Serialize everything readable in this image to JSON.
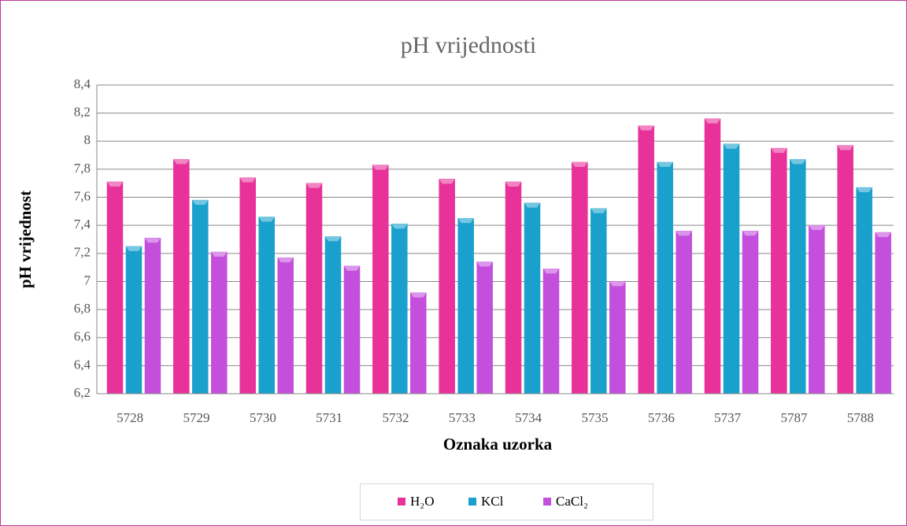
{
  "chart_data": {
    "type": "bar",
    "title": "pH vrijednosti",
    "x_label": "Oznaka uzorka",
    "y_label": "pH vrijednost",
    "categories": [
      "5728",
      "5729",
      "5730",
      "5731",
      "5732",
      "5733",
      "5734",
      "5735",
      "5736",
      "5737",
      "5787",
      "5788"
    ],
    "series": [
      {
        "name": "H₂O",
        "color": "#e8329a",
        "values": [
          7.71,
          7.87,
          7.74,
          7.7,
          7.83,
          7.73,
          7.71,
          7.85,
          8.11,
          8.16,
          7.95,
          7.97
        ]
      },
      {
        "name": "KCl",
        "color": "#1aa0cc",
        "values": [
          7.25,
          7.58,
          7.46,
          7.32,
          7.41,
          7.45,
          7.56,
          7.52,
          7.85,
          7.98,
          7.87,
          7.67
        ]
      },
      {
        "name": "CaCl₂",
        "color": "#c44fdc",
        "values": [
          7.31,
          7.21,
          7.17,
          7.11,
          6.92,
          7.14,
          7.09,
          7.0,
          7.36,
          7.36,
          7.4,
          7.35
        ]
      }
    ],
    "ylim": [
      6.2,
      8.4
    ],
    "yticks": [
      {
        "value": 6.2,
        "label": "6,2"
      },
      {
        "value": 6.4,
        "label": "6,4"
      },
      {
        "value": 6.6,
        "label": "6,6"
      },
      {
        "value": 6.8,
        "label": "6,8"
      },
      7,
      {
        "value": 7.2,
        "label": "7,2"
      },
      {
        "value": 7.4,
        "label": "7,4"
      },
      {
        "value": 7.6,
        "label": "7,6"
      },
      {
        "value": 7.8,
        "label": "7,8"
      },
      8,
      {
        "value": 8.2,
        "label": "8,2"
      },
      {
        "value": 8.4,
        "label": "8,4"
      }
    ],
    "grid": true,
    "legend": "bottom"
  }
}
